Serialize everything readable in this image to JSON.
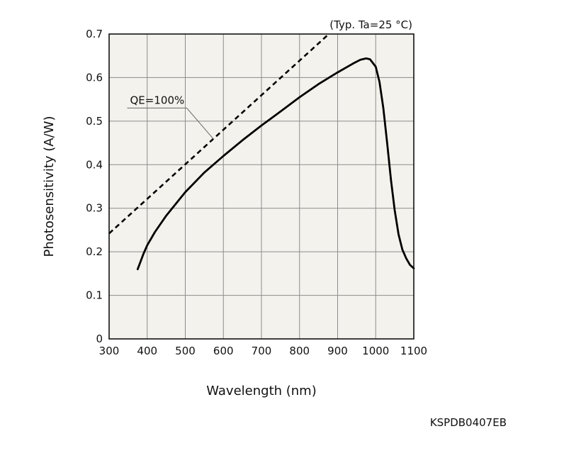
{
  "chart_data": {
    "type": "line",
    "xlabel": "Wavelength (nm)",
    "ylabel": "Photosensitivity (A/W)",
    "condition_note": "(Typ. Ta=25 °C)",
    "xlim": [
      300,
      1100
    ],
    "ylim": [
      0,
      0.7
    ],
    "x_ticks": [
      "300",
      "400",
      "500",
      "600",
      "700",
      "800",
      "900",
      "1000",
      "1100"
    ],
    "y_ticks": [
      "0",
      "0.1",
      "0.2",
      "0.3",
      "0.4",
      "0.5",
      "0.6",
      "0.7"
    ],
    "x_tick_values": [
      300,
      400,
      500,
      600,
      700,
      800,
      900,
      1000,
      1100
    ],
    "y_tick_values": [
      0,
      0.1,
      0.2,
      0.3,
      0.4,
      0.5,
      0.6,
      0.7
    ],
    "grid": true,
    "series": [
      {
        "style": "solid",
        "color": "#000000",
        "points": [
          [
            375,
            0.16
          ],
          [
            390,
            0.195
          ],
          [
            400,
            0.215
          ],
          [
            420,
            0.245
          ],
          [
            450,
            0.283
          ],
          [
            500,
            0.337
          ],
          [
            550,
            0.382
          ],
          [
            600,
            0.42
          ],
          [
            650,
            0.456
          ],
          [
            700,
            0.49
          ],
          [
            750,
            0.522
          ],
          [
            800,
            0.555
          ],
          [
            850,
            0.585
          ],
          [
            900,
            0.612
          ],
          [
            940,
            0.632
          ],
          [
            960,
            0.641
          ],
          [
            975,
            0.644
          ],
          [
            985,
            0.642
          ],
          [
            1000,
            0.625
          ],
          [
            1010,
            0.59
          ],
          [
            1020,
            0.53
          ],
          [
            1030,
            0.45
          ],
          [
            1040,
            0.365
          ],
          [
            1050,
            0.295
          ],
          [
            1060,
            0.24
          ],
          [
            1070,
            0.205
          ],
          [
            1080,
            0.185
          ],
          [
            1090,
            0.17
          ],
          [
            1100,
            0.162
          ]
        ]
      },
      {
        "name": "QE=100%",
        "style": "dashed",
        "color": "#000000",
        "points": [
          [
            300,
            0.242
          ],
          [
            877,
            0.7
          ]
        ]
      }
    ],
    "annotations": [
      {
        "text": "QE=100%",
        "x": 500,
        "y": 0.535,
        "pointer_to": [
          575,
          0.458
        ]
      }
    ]
  },
  "figure_code": "KSPDB0407EB"
}
